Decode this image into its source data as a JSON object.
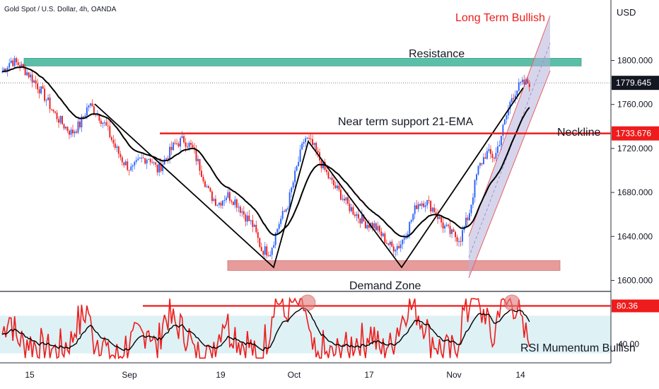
{
  "header": {
    "symbol_text": "Gold Spot / U.S. Dollar, 4h, OANDA"
  },
  "chart_data": {
    "type": "candlestick",
    "currency": "USD",
    "price_axis": {
      "ylim": [
        1590,
        1855
      ],
      "ticks": [
        "1800.000",
        "1760.000",
        "1720.000",
        "1680.000",
        "1640.000",
        "1600.000"
      ],
      "tick_values": [
        1800,
        1760,
        1720,
        1680,
        1640,
        1600
      ]
    },
    "time_axis": {
      "labels": [
        "15",
        "Sep",
        "19",
        "Oct",
        "17",
        "Nov",
        "14"
      ]
    },
    "price_labels": [
      {
        "text": "1779.645",
        "value": 1779.645,
        "style": "dark"
      },
      {
        "text": "1733.676",
        "value": 1733.676,
        "style": "red"
      }
    ],
    "rsi": {
      "ticks": [
        "40.00"
      ],
      "tick_value": 40,
      "label": {
        "text": "80.36",
        "value": 80.36
      },
      "ylim": [
        20,
        95
      ],
      "band": [
        30,
        70
      ]
    },
    "annotations": {
      "long_term": "Long Term Bullish",
      "resistance": "Resistance",
      "near_term": "Near term support 21-EMA",
      "neckline": "Neckline",
      "demand": "Demand Zone",
      "rsi_note": "RSI Mumentum Bullish"
    },
    "levels": {
      "resistance_band": [
        1795,
        1802
      ],
      "neckline": 1733.676,
      "demand_band": [
        1609,
        1618
      ],
      "rsi_line": 80.36
    },
    "price_series": [
      1790,
      1800,
      1796,
      1788,
      1778,
      1766,
      1752,
      1742,
      1734,
      1742,
      1760,
      1752,
      1740,
      1722,
      1708,
      1700,
      1710,
      1712,
      1700,
      1712,
      1724,
      1728,
      1720,
      1700,
      1678,
      1670,
      1678,
      1672,
      1660,
      1650,
      1628,
      1626,
      1652,
      1668,
      1700,
      1730,
      1722,
      1705,
      1690,
      1680,
      1668,
      1660,
      1652,
      1650,
      1640,
      1630,
      1632,
      1648,
      1670,
      1672,
      1664,
      1650,
      1642,
      1638,
      1660,
      1700,
      1716,
      1712,
      1740,
      1768,
      1778,
      1780
    ]
  }
}
